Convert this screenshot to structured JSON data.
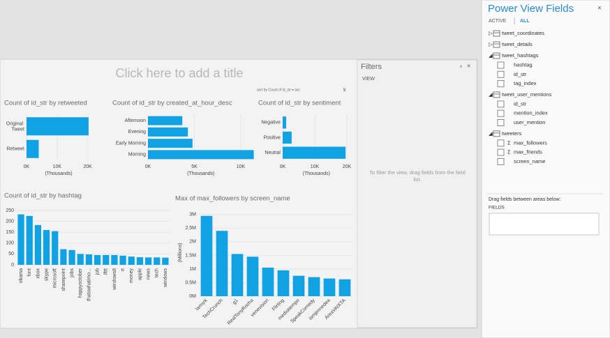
{
  "canvas_title": "Click here to add a title",
  "filters": {
    "title": "Filters",
    "section": "VIEW",
    "hint": "To filter the view, drag fields from the field list."
  },
  "field_list": {
    "title": "Power View Fields",
    "tabs": [
      "ACTIVE",
      "ALL"
    ],
    "tables": [
      {
        "name": "tweet_coordinates",
        "fields": []
      },
      {
        "name": "tweet_details",
        "fields": []
      },
      {
        "name": "tweet_hashtags",
        "fields": [
          {
            "name": "hashtag"
          },
          {
            "name": "id_str"
          },
          {
            "name": "tag_index"
          }
        ]
      },
      {
        "name": "tweet_user_mentions",
        "fields": [
          {
            "name": "id_str"
          },
          {
            "name": "mention_index"
          },
          {
            "name": "user_mention"
          }
        ]
      },
      {
        "name": "tweeters",
        "fields": [
          {
            "name": "max_followers",
            "icon": "Σ"
          },
          {
            "name": "max_friends",
            "icon": "Σ"
          },
          {
            "name": "screen_name"
          }
        ]
      }
    ],
    "areas_hint": "Drag fields between areas below:",
    "area": "FIELDS"
  },
  "chart_data": [
    {
      "type": "bar",
      "orientation": "horizontal",
      "title": "Count of id_str by retweeted",
      "categories": [
        "Original Tweet",
        "Retweet"
      ],
      "values": [
        20.3,
        4.0
      ],
      "color": "#10a2e2",
      "xlim": [
        0,
        21
      ],
      "xticks": [
        {
          "value": 0,
          "label": "0K"
        },
        {
          "value": 10,
          "label": "10K"
        },
        {
          "value": 20,
          "label": "20K"
        }
      ],
      "x_label": "(Thousands)",
      "grid": true
    },
    {
      "type": "bar",
      "orientation": "horizontal",
      "title": "Count of id_str by created_at_hour_desc",
      "categories": [
        "Afternoon",
        "Evening",
        "Early Morning",
        "Morning"
      ],
      "values": [
        3.7,
        4.3,
        4.8,
        11.4
      ],
      "color": "#10a2e2",
      "xlim": [
        0,
        11.4
      ],
      "xticks": [
        {
          "value": 0,
          "label": "0K"
        },
        {
          "value": 5,
          "label": "5K"
        },
        {
          "value": 10,
          "label": "10K"
        }
      ],
      "x_label": "(Thousands)",
      "grid": true
    },
    {
      "type": "bar",
      "orientation": "horizontal",
      "title": "Count of id_str by sentiment",
      "sort_label": "sort by Count of id_str ▾ asc",
      "categories": [
        "Negative",
        "Positive",
        "Neutral"
      ],
      "values": [
        1.1,
        2.8,
        19.6
      ],
      "color": "#10a2e2",
      "xlim": [
        0,
        21
      ],
      "xticks": [
        {
          "value": 0,
          "label": "0K"
        },
        {
          "value": 10,
          "label": "10K"
        },
        {
          "value": 20,
          "label": "20K"
        }
      ],
      "x_label": "(Thousands)",
      "grid": true
    },
    {
      "type": "bar",
      "orientation": "vertical",
      "title": "Count of id_str by hashtag",
      "categories": [
        "obama",
        "font",
        "xbox",
        "skype",
        "microsoft",
        "sharepoint",
        "jobs",
        "happyoctober",
        "thatswhatimo...",
        "job",
        "ifttt",
        "windows8",
        "rt",
        "money",
        "apple",
        "news",
        "tech",
        "windows"
      ],
      "values": [
        232,
        225,
        183,
        160,
        155,
        72,
        68,
        50,
        48,
        45,
        45,
        45,
        42,
        38,
        35,
        34,
        34,
        33
      ],
      "color": "#10a2e2",
      "ylim": [
        0,
        250
      ],
      "yticks": [
        0,
        50,
        100,
        150,
        200,
        250
      ],
      "grid": true
    },
    {
      "type": "bar",
      "orientation": "vertical",
      "title": "Max of max_followers by screen_name",
      "categories": [
        "lamsrk",
        "TechCrunch",
        "g1",
        "RealTonyRocha",
        "venevision",
        "Flirting",
        "mediotiempo",
        "SpeakComedy",
        "iamjennedea",
        "AreaVAIXTA"
      ],
      "values": [
        2.95,
        2.4,
        1.55,
        1.45,
        1.05,
        0.95,
        0.75,
        0.7,
        0.65,
        0.62
      ],
      "color": "#10a2e2",
      "ylim": [
        0,
        3.2
      ],
      "yticks": [
        {
          "value": 0,
          "label": "0M"
        },
        {
          "value": 0.5,
          "label": "0.5M"
        },
        {
          "value": 1,
          "label": "1M"
        },
        {
          "value": 1.5,
          "label": "1.5M"
        },
        {
          "value": 2,
          "label": "2M"
        },
        {
          "value": 2.5,
          "label": "2.5M"
        },
        {
          "value": 3,
          "label": "3M"
        }
      ],
      "y_label": "(Millions)",
      "grid": true
    }
  ]
}
